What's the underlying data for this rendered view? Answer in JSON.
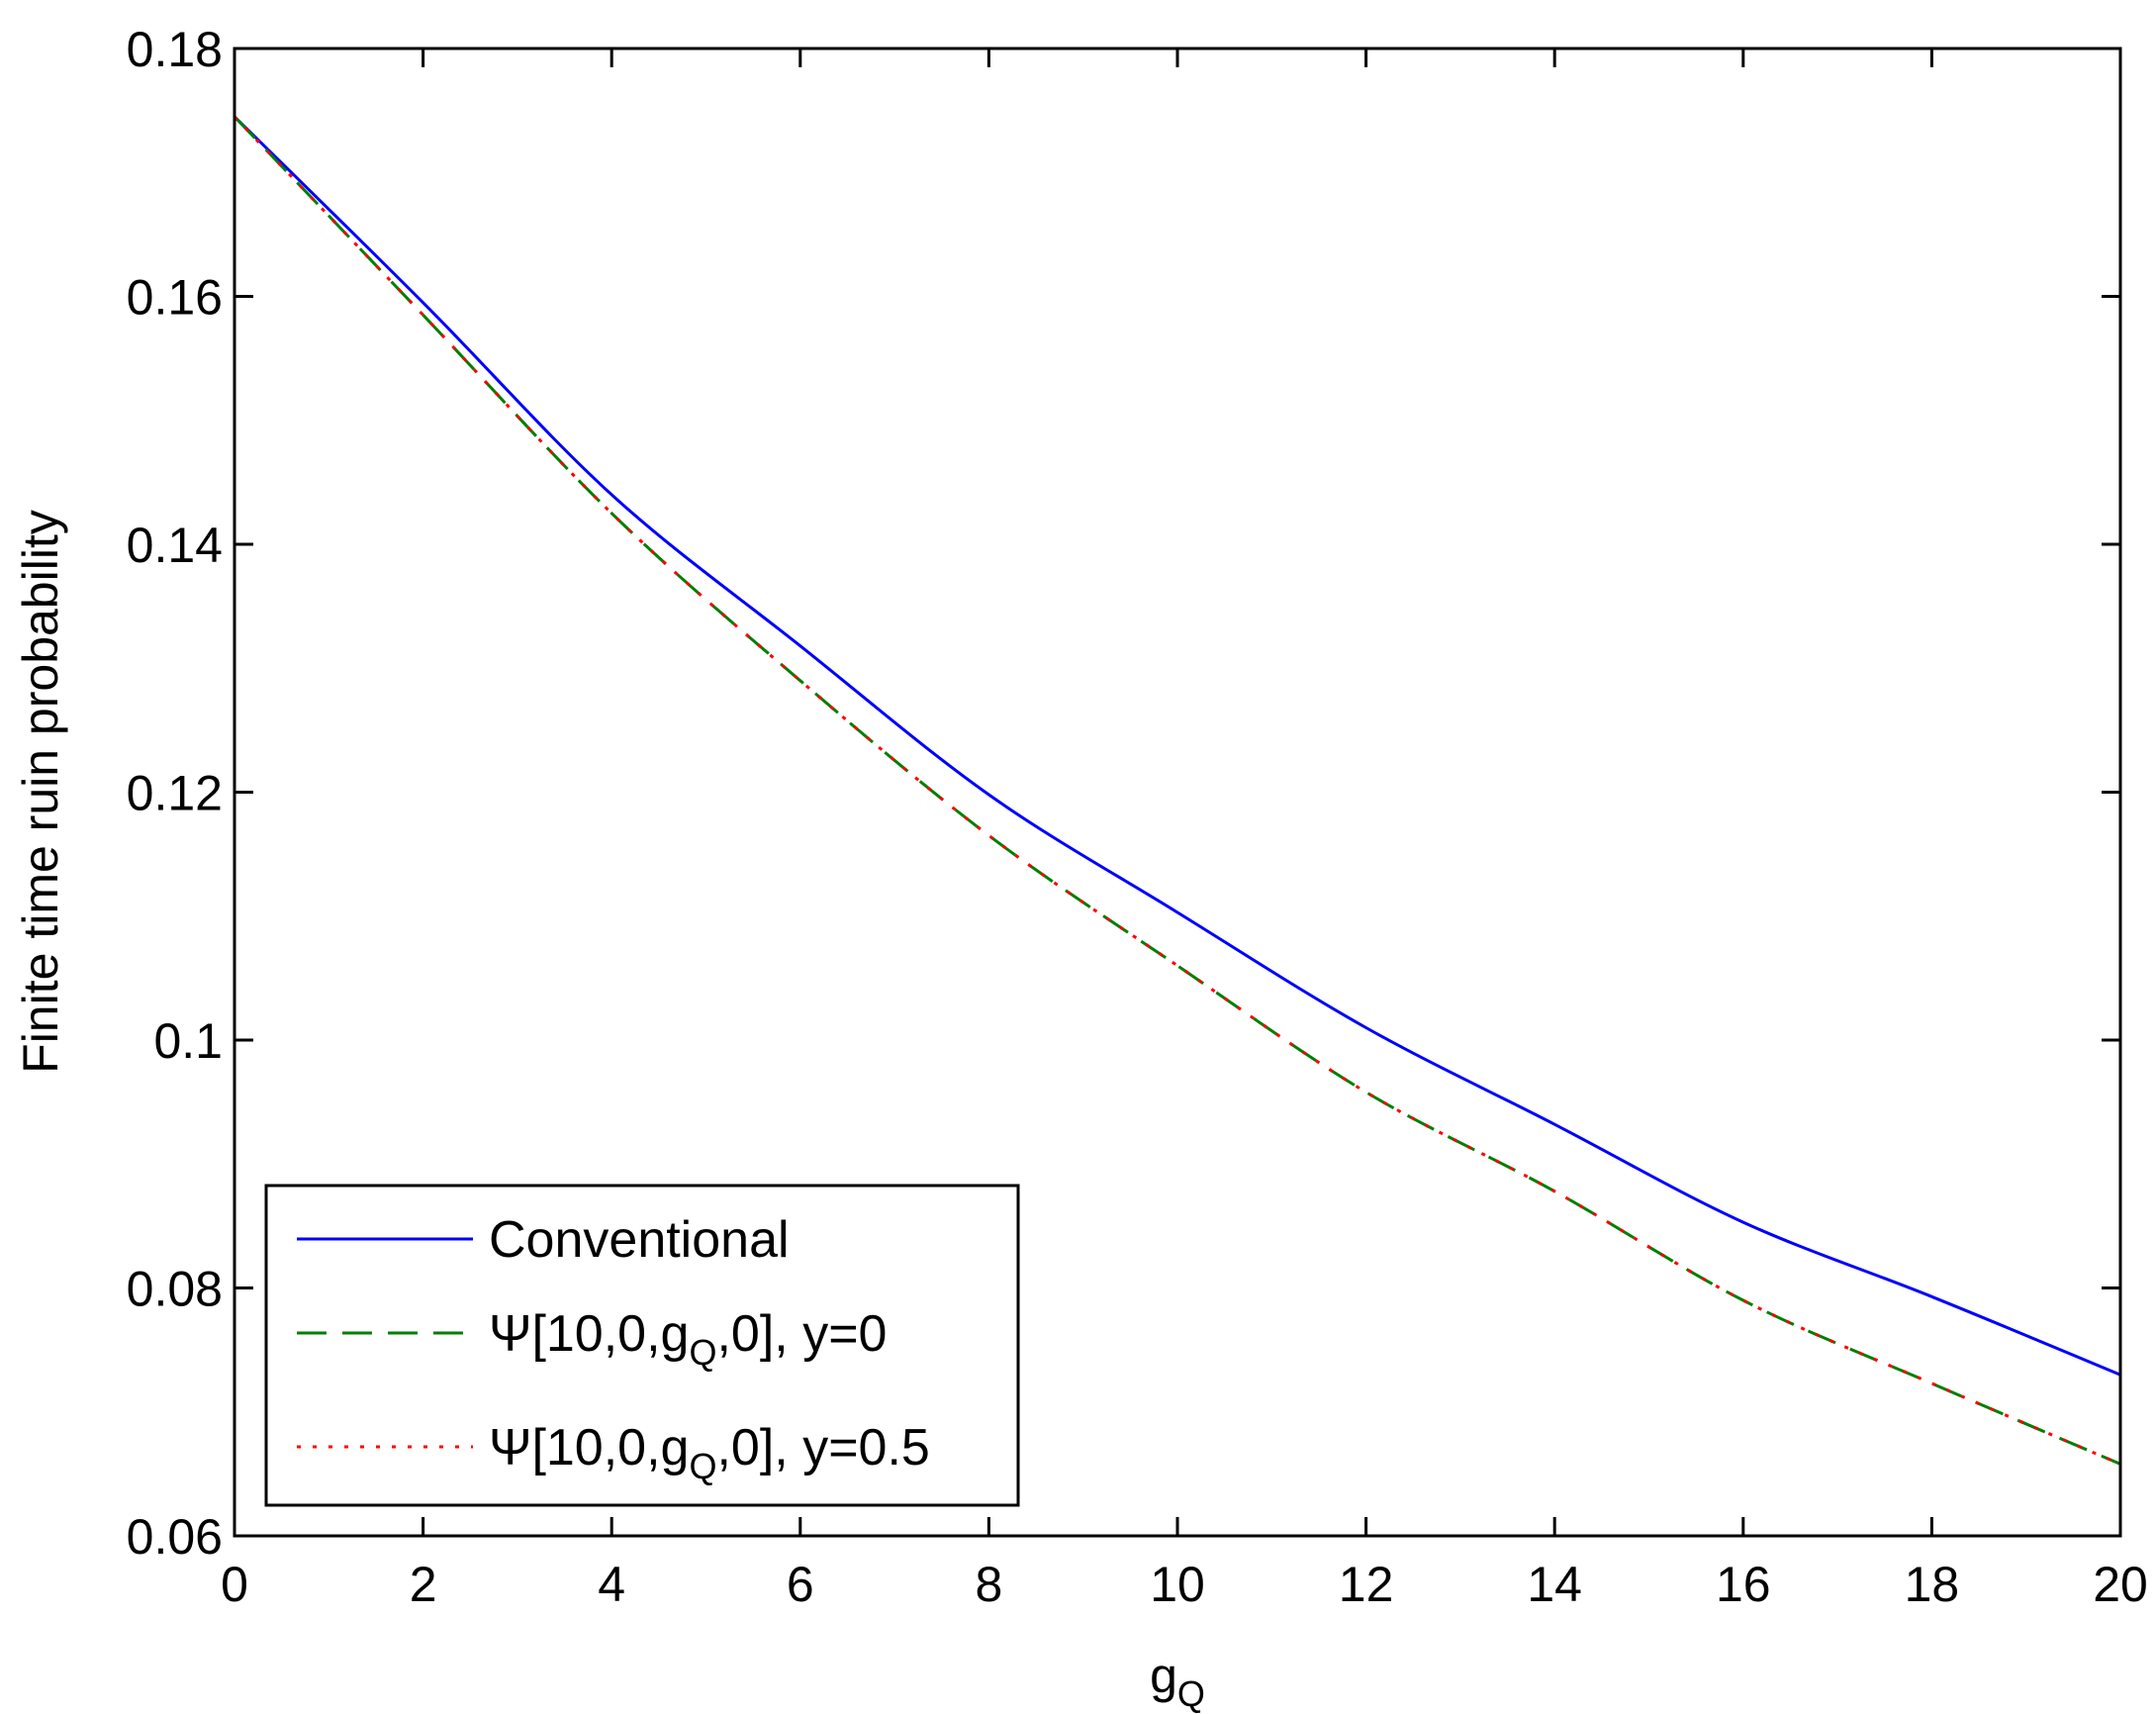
{
  "chart_data": {
    "type": "line",
    "title": "",
    "xlabel": "g",
    "xlabel_sub": "Q",
    "ylabel": "Finite time ruin probability",
    "xlim": [
      0,
      20
    ],
    "ylim": [
      0.06,
      0.18
    ],
    "xticks": [
      0,
      2,
      4,
      6,
      8,
      10,
      12,
      14,
      16,
      18,
      20
    ],
    "xtick_labels": [
      "0",
      "2",
      "4",
      "6",
      "8",
      "10",
      "12",
      "14",
      "16",
      "18",
      "20"
    ],
    "yticks": [
      0.06,
      0.08,
      0.1,
      0.12,
      0.14,
      0.16,
      0.18
    ],
    "ytick_labels": [
      "0.06",
      "0.08",
      "0.1",
      "0.12",
      "0.14",
      "0.16",
      "0.18"
    ],
    "grid": false,
    "legend_position": "bottom-left",
    "x": [
      0,
      2,
      4,
      6,
      8,
      10,
      12,
      14,
      16,
      18,
      20
    ],
    "series": [
      {
        "name": "Conventional",
        "legend_parts": {
          "pre": "Conventional",
          "sub": "",
          "post": ""
        },
        "color": "#0000ff",
        "style": "solid",
        "values": [
          0.1745,
          0.1595,
          0.144,
          0.1318,
          0.1198,
          0.1103,
          0.101,
          0.0932,
          0.0853,
          0.0793,
          0.073
        ]
      },
      {
        "name": "Ψ[10,0,gQ,0], y=0",
        "legend_parts": {
          "pre": "Ψ[10,0,g",
          "sub": "Q",
          "post": ",0], y=0"
        },
        "color": "#007f00",
        "style": "dashed",
        "values": [
          0.1745,
          0.1585,
          0.1425,
          0.129,
          0.1165,
          0.106,
          0.0958,
          0.0878,
          0.079,
          0.0723,
          0.0658
        ]
      },
      {
        "name": "Ψ[10,0,gQ,0], y=0.5",
        "legend_parts": {
          "pre": "Ψ[10,0,g",
          "sub": "Q",
          "post": ",0], y=0.5"
        },
        "color": "#ff0000",
        "style": "dotted",
        "values": [
          0.1745,
          0.1585,
          0.1425,
          0.129,
          0.1165,
          0.106,
          0.0958,
          0.0878,
          0.079,
          0.0723,
          0.0658
        ]
      }
    ]
  }
}
